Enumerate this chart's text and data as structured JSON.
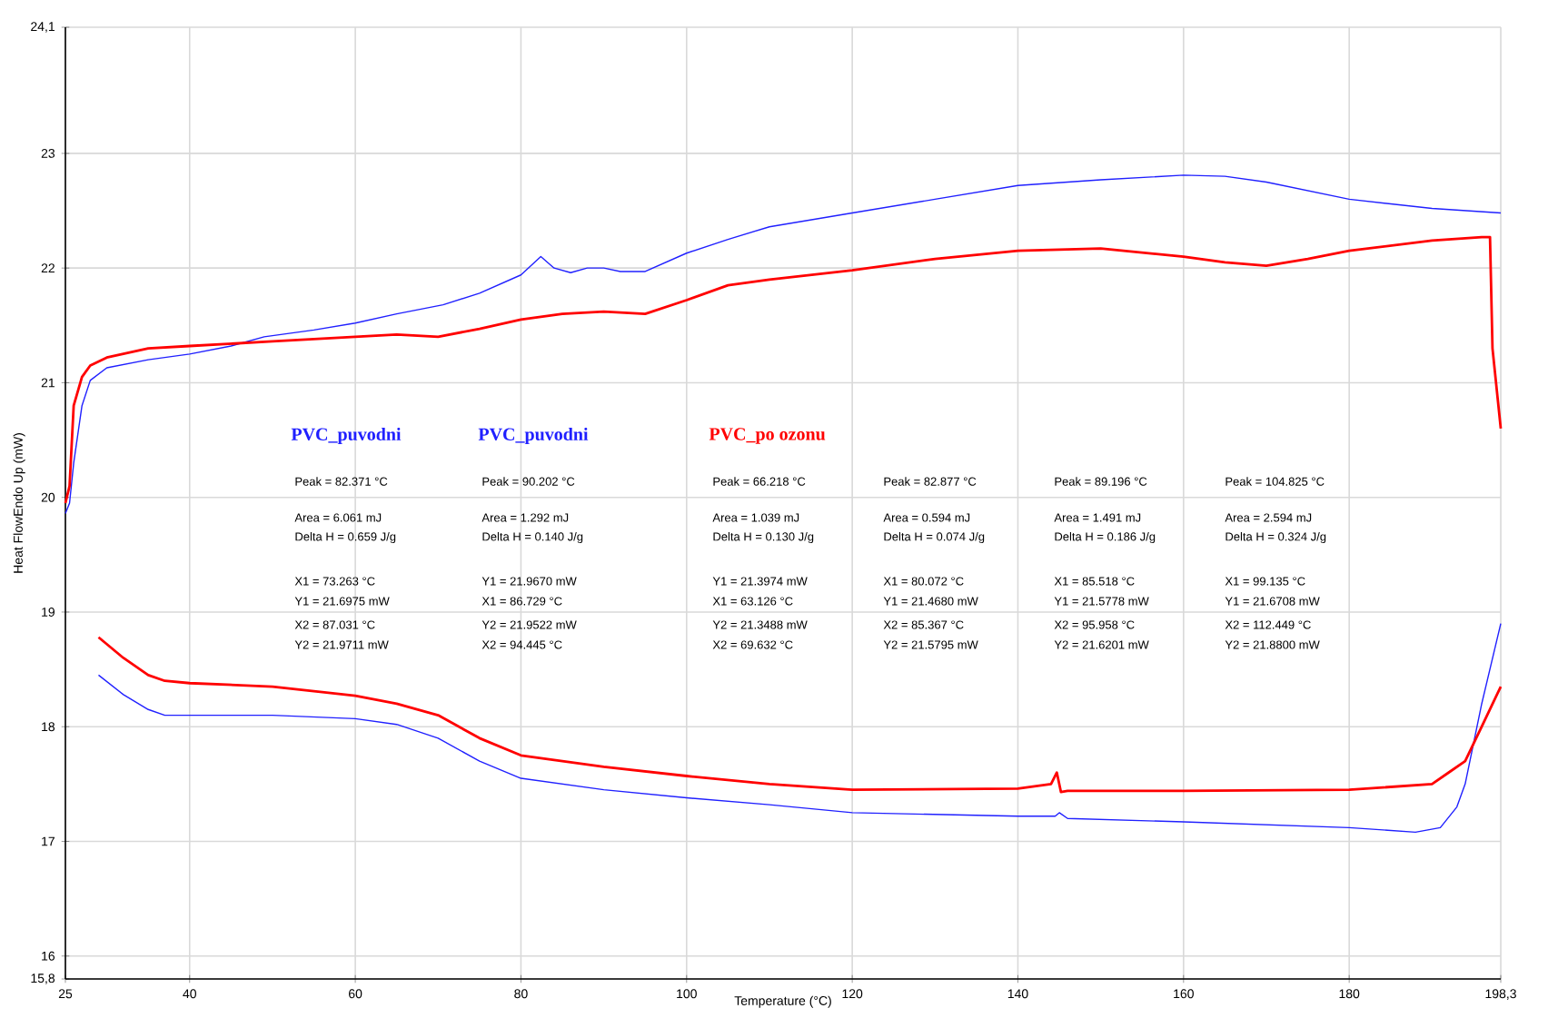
{
  "chart_data": {
    "type": "line",
    "xlabel": "Temperature (°C)",
    "ylabel": "Heat FlowEndo Up (mW)",
    "xlim": [
      25,
      198.3
    ],
    "ylim": [
      15.8,
      24.1
    ],
    "xticks": [
      25,
      40,
      60,
      80,
      100,
      120,
      140,
      160,
      180,
      {
        "value": 198.3,
        "label": "198,3"
      }
    ],
    "yticks": [
      {
        "value": 15.8,
        "label": "15,8"
      },
      16,
      17,
      18,
      19,
      20,
      21,
      22,
      23,
      {
        "value": 24.1,
        "label": "24,1"
      }
    ],
    "grid": true,
    "marker": "none",
    "line_style": "solid",
    "series": [
      {
        "color": "#2020ff",
        "x": [
          25,
          25.5,
          26,
          27,
          28,
          30,
          35,
          40,
          45,
          49,
          55,
          60,
          65,
          70.6,
          75,
          80,
          82.4,
          84,
          86,
          88,
          90,
          92,
          95,
          100,
          105,
          110,
          120,
          130,
          140,
          150,
          160,
          165,
          170,
          180,
          190,
          198.3
        ],
        "values": [
          19.86,
          19.95,
          20.3,
          20.8,
          21.02,
          21.13,
          21.2,
          21.25,
          21.32,
          21.4,
          21.46,
          21.52,
          21.6,
          21.68,
          21.78,
          21.94,
          22.1,
          22.0,
          21.96,
          22.0,
          22.0,
          21.97,
          21.97,
          22.13,
          22.25,
          22.36,
          22.48,
          22.6,
          22.72,
          22.77,
          22.81,
          22.8,
          22.75,
          22.6,
          22.52,
          22.48
        ]
      },
      {
        "color": "#ff0000",
        "x": [
          25,
          25.5,
          26,
          27,
          28,
          30,
          35,
          40,
          50,
          60,
          65,
          70,
          75,
          80,
          85,
          90,
          95,
          100,
          105,
          110,
          120,
          130,
          140,
          150,
          160,
          165,
          170,
          175,
          180,
          190,
          196,
          197,
          197.3,
          198.3
        ],
        "values": [
          19.95,
          20.1,
          20.8,
          21.05,
          21.15,
          21.22,
          21.3,
          21.32,
          21.36,
          21.4,
          21.42,
          21.4,
          21.47,
          21.55,
          21.6,
          21.62,
          21.6,
          21.72,
          21.85,
          21.9,
          21.98,
          22.08,
          22.15,
          22.17,
          22.1,
          22.05,
          22.02,
          22.08,
          22.15,
          22.24,
          22.27,
          22.27,
          21.3,
          20.6
        ]
      },
      {
        "color": "#2020ff",
        "x": [
          29,
          32,
          35,
          37,
          40,
          50,
          60,
          65,
          70,
          75,
          80,
          90,
          100,
          110,
          120,
          140,
          144.5,
          145,
          146,
          160,
          180,
          188,
          191,
          193,
          194,
          196,
          198.3
        ],
        "values": [
          18.45,
          18.28,
          18.15,
          18.1,
          18.1,
          18.1,
          18.07,
          18.02,
          17.9,
          17.7,
          17.55,
          17.45,
          17.38,
          17.32,
          17.25,
          17.22,
          17.22,
          17.25,
          17.2,
          17.17,
          17.12,
          17.08,
          17.12,
          17.3,
          17.5,
          18.2,
          18.9
        ]
      },
      {
        "color": "#ff0000",
        "x": [
          29,
          32,
          35,
          37,
          40,
          50,
          60,
          65,
          70,
          75,
          80,
          90,
          100,
          110,
          120,
          140,
          144,
          144.7,
          145.2,
          146,
          160,
          180,
          190,
          192,
          194,
          196,
          198.3
        ],
        "values": [
          18.78,
          18.6,
          18.45,
          18.4,
          18.38,
          18.35,
          18.27,
          18.2,
          18.1,
          17.9,
          17.75,
          17.65,
          17.57,
          17.5,
          17.45,
          17.46,
          17.5,
          17.6,
          17.43,
          17.44,
          17.44,
          17.45,
          17.5,
          17.6,
          17.7,
          18.0,
          18.35
        ]
      }
    ],
    "annotations": [
      "PVC_puvodni",
      "Peak = 82.371 °C",
      "Area = 6.061 mJ",
      "Delta H = 0.659 J/g",
      "X1 = 73.263 °C",
      "Y1 = 21.6975 mW",
      "X2 = 87.031 °C",
      "Y2 = 21.9711 mW",
      "PVC_puvodni",
      "Peak = 90.202 °C",
      "Area = 1.292 mJ",
      "Delta H = 0.140 J/g",
      "Y1 = 21.9670 mW",
      "X1 = 86.729 °C",
      "Y2 = 21.9522 mW",
      "X2 = 94.445 °C",
      "PVC_po ozonu",
      "Peak = 66.218 °C",
      "Area = 1.039 mJ",
      "Delta H = 0.130 J/g",
      "Y1 = 21.3974 mW",
      "X1 = 63.126 °C",
      "Y2 = 21.3488 mW",
      "X2 = 69.632 °C",
      "Peak = 82.877 °C",
      "Area = 0.594 mJ",
      "Delta H = 0.074 J/g",
      "X1 = 80.072 °C",
      "Y1 = 21.4680 mW",
      "X2 = 85.367 °C",
      "Y2 = 21.5795 mW",
      "Peak = 89.196 °C",
      "Area = 1.491 mJ",
      "Delta H = 0.186 J/g",
      "X1 = 85.518 °C",
      "Y1 = 21.5778 mW",
      "X2 = 95.958 °C",
      "Y2 = 21.6201 mW",
      "Peak = 104.825 °C",
      "Area = 2.594 mJ",
      "Delta H = 0.324 J/g",
      "X1 = 99.135 °C",
      "Y1 = 21.6708 mW",
      "X2 = 112.449 °C",
      "Y2 = 21.8800 mW"
    ]
  }
}
